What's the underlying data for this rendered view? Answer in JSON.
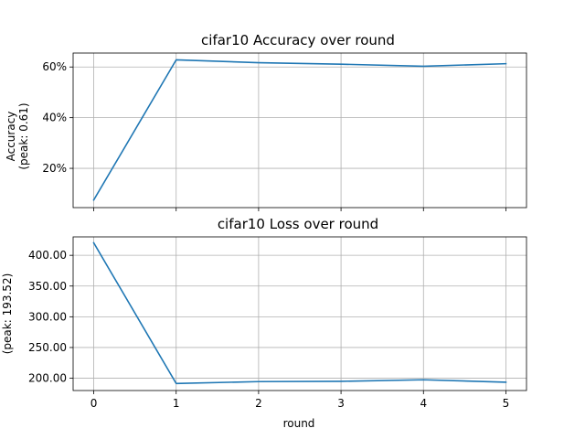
{
  "chart_data": [
    {
      "type": "line",
      "title": "cifar10 Accuracy over round",
      "xlabel": "",
      "ylabel_lines": [
        "Accuracy",
        "(peak: 0.61)"
      ],
      "x": [
        0,
        1,
        2,
        3,
        4,
        5
      ],
      "series": [
        {
          "values": [
            0.075,
            0.628,
            0.617,
            0.611,
            0.603,
            0.613
          ],
          "color": "#1f77b4"
        }
      ],
      "xlim": [
        -0.25,
        5.25
      ],
      "ylim": [
        0.045,
        0.655
      ],
      "yticks": [
        0.2,
        0.4,
        0.6
      ],
      "ytick_labels": [
        "20%",
        "40%",
        "60%"
      ],
      "show_xtick_labels": false,
      "grid": true
    },
    {
      "type": "line",
      "title": "cifar10 Loss over round",
      "xlabel": "round",
      "ylabel_lines": [
        "(peak: 193.52)"
      ],
      "x": [
        0,
        1,
        2,
        3,
        4,
        5
      ],
      "series": [
        {
          "values": [
            420.3,
            191.5,
            194.5,
            195.0,
            197.5,
            193.5
          ],
          "color": "#1f77b4"
        }
      ],
      "xlim": [
        -0.25,
        5.25
      ],
      "ylim": [
        180.0,
        430.0
      ],
      "yticks": [
        200,
        250,
        300,
        350,
        400
      ],
      "ytick_labels": [
        "200.00",
        "250.00",
        "300.00",
        "350.00",
        "400.00"
      ],
      "xticks": [
        0,
        1,
        2,
        3,
        4,
        5
      ],
      "xtick_labels": [
        "0",
        "1",
        "2",
        "3",
        "4",
        "5"
      ],
      "show_xtick_labels": true,
      "grid": true
    }
  ]
}
